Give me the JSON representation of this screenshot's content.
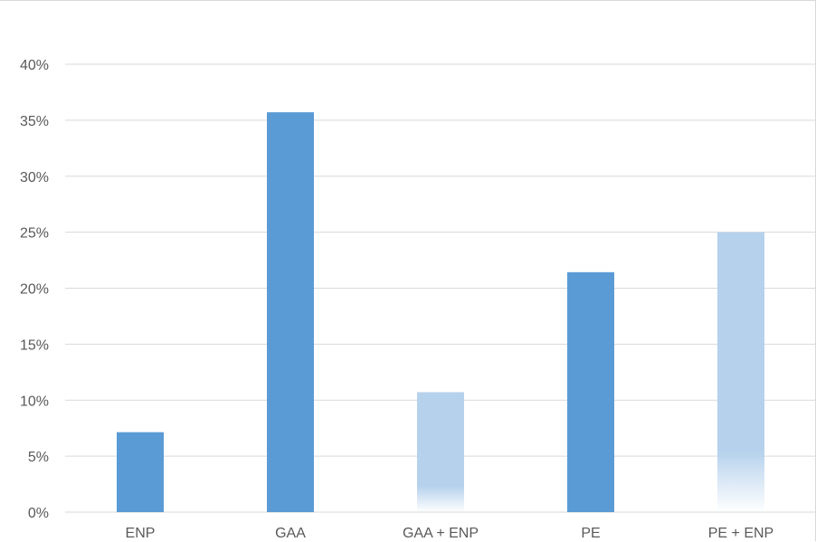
{
  "chart_data": {
    "type": "bar",
    "title": "",
    "xlabel": "",
    "ylabel": "",
    "categories": [
      "ENP",
      "GAA",
      "GAA + ENP",
      "PE",
      "PE + ENP"
    ],
    "values": [
      7.14,
      35.71,
      10.71,
      21.43,
      25.0
    ],
    "value_unit": "%",
    "ylim": [
      0,
      40
    ],
    "ytick_values": [
      0,
      5,
      10,
      15,
      20,
      25,
      30,
      35,
      40
    ],
    "ytick_labels": [
      "0%",
      "5%",
      "10%",
      "15%",
      "20%",
      "25%",
      "30%",
      "35%",
      "40%"
    ],
    "bar_styles": [
      "solid",
      "solid",
      "faded",
      "solid",
      "faded"
    ],
    "grid": true,
    "legend": "none",
    "colors": {
      "solid": "#5b9bd5",
      "faded": "#b5d1ec",
      "gridline": "#d9d9d9",
      "axis_text": "#595959"
    }
  }
}
